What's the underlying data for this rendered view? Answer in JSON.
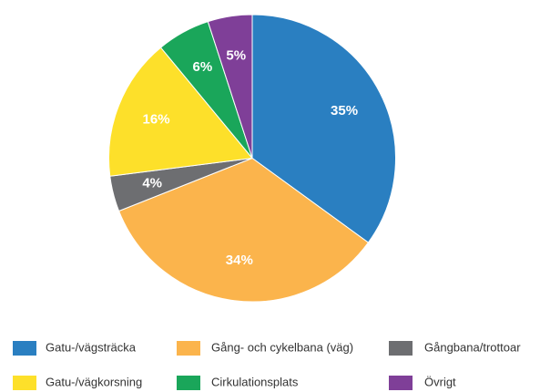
{
  "chart_data": {
    "type": "pie",
    "categories": [
      "Gatu-/vägsträcka",
      "Gång- och cykelbana (väg)",
      "Gångbana/trottoar",
      "Gatu-/vägkorsning",
      "Cirkulationsplats",
      "Övrigt"
    ],
    "values": [
      35,
      34,
      4,
      16,
      6,
      5
    ],
    "value_labels": [
      "35%",
      "34%",
      "4%",
      "16%",
      "6%",
      "5%"
    ],
    "colors": [
      "#2a7fc1",
      "#fbb44c",
      "#6d6e71",
      "#fde02a",
      "#1aa65a",
      "#7f3f98"
    ],
    "legend": "bottom"
  }
}
